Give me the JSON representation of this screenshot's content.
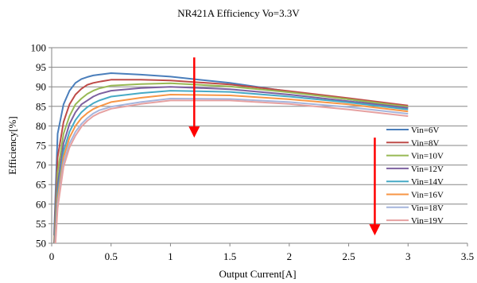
{
  "chart_data": {
    "type": "line",
    "title": "NR421A Efficiency  Vo=3.3V",
    "xlabel": "Output Current[A]",
    "ylabel": "Efficiency[%]",
    "xlim": [
      0,
      3.5
    ],
    "ylim": [
      50,
      100
    ],
    "xticks": [
      0,
      0.5,
      1,
      1.5,
      2,
      2.5,
      3,
      3.5
    ],
    "xtick_labels": [
      "0",
      "0.5",
      "1",
      "1.5",
      "2",
      "2.5",
      "3",
      "3.5"
    ],
    "yticks": [
      50,
      55,
      60,
      65,
      70,
      75,
      80,
      85,
      90,
      95,
      100
    ],
    "ytick_labels": [
      "50",
      "55",
      "60",
      "65",
      "70",
      "75",
      "80",
      "85",
      "90",
      "95",
      "100"
    ],
    "grid": "horizontal",
    "legend_position": "right",
    "x": [
      0.02,
      0.05,
      0.1,
      0.15,
      0.2,
      0.25,
      0.3,
      0.35,
      0.4,
      0.5,
      0.75,
      1.0,
      1.5,
      2.0,
      2.5,
      3.0
    ],
    "series": [
      {
        "name": "Vin=6V",
        "color": "#4a7ebb",
        "values": [
          52,
          78,
          85.5,
          89,
          91,
          92,
          92.5,
          92.9,
          93.1,
          93.5,
          93.1,
          92.6,
          91.0,
          88.8,
          86.8,
          84.6
        ]
      },
      {
        "name": "Vin=8V",
        "color": "#be4b48",
        "values": [
          50,
          72,
          81,
          85.5,
          88,
          89.5,
          90.5,
          91,
          91.3,
          91.8,
          91.8,
          91.6,
          90.6,
          88.9,
          87.1,
          85.2
        ]
      },
      {
        "name": "Vin=10V",
        "color": "#98b954",
        "values": [
          49,
          68,
          78,
          82.5,
          85.5,
          87,
          88.2,
          89,
          89.6,
          90.3,
          90.7,
          90.9,
          90.1,
          88.6,
          86.8,
          84.9
        ]
      },
      {
        "name": "Vin=12V",
        "color": "#7d60a0",
        "values": [
          48,
          65,
          75.5,
          80.5,
          83.5,
          85.5,
          86.5,
          87.5,
          88.2,
          89.0,
          89.7,
          90.0,
          89.4,
          88.0,
          86.3,
          84.6
        ]
      },
      {
        "name": "Vin=14V",
        "color": "#46aac5",
        "values": [
          47,
          63,
          73.5,
          78.5,
          81.5,
          83.5,
          84.8,
          85.8,
          86.5,
          87.5,
          88.4,
          89.0,
          88.7,
          87.5,
          86.0,
          84.2
        ]
      },
      {
        "name": "Vin=16V",
        "color": "#f79646",
        "values": [
          46,
          61.5,
          72,
          77,
          80,
          82,
          83.3,
          84.3,
          85,
          86.1,
          87.2,
          88.0,
          87.8,
          86.8,
          85.5,
          83.7
        ]
      },
      {
        "name": "Vin=18V",
        "color": "#a5b5dc",
        "values": [
          45,
          60,
          70.5,
          75.5,
          78.5,
          80.5,
          82,
          83.2,
          84,
          84.9,
          86.1,
          87.0,
          86.9,
          86.1,
          84.8,
          83.1
        ]
      },
      {
        "name": "Vin=19V",
        "color": "#e6a1a1",
        "values": [
          44,
          59,
          69.5,
          74.5,
          77.5,
          79.8,
          81.3,
          82.5,
          83.3,
          84.4,
          85.6,
          86.5,
          86.5,
          85.6,
          84.2,
          82.5
        ]
      }
    ],
    "annotations": [
      {
        "type": "arrow",
        "color": "#ff0000",
        "x": 1.2,
        "y_from": 97.5,
        "y_to": 77
      },
      {
        "type": "arrow",
        "color": "#ff0000",
        "x": 2.72,
        "y_from": 77,
        "y_to": 52
      }
    ]
  }
}
